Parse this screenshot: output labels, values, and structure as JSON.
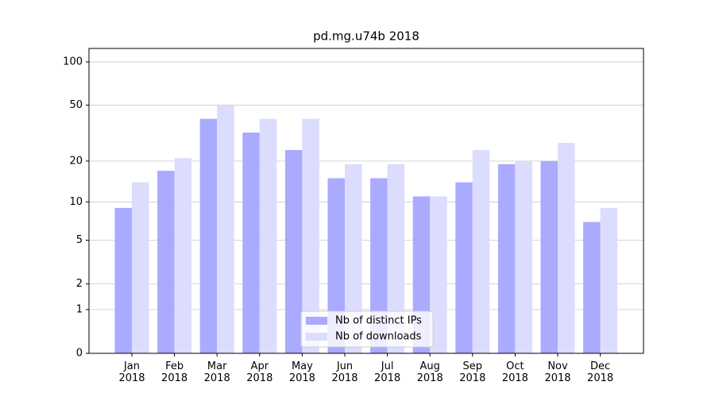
{
  "chart_data": {
    "type": "bar",
    "title": "pd.mg.u74b 2018",
    "scale": "log1p",
    "categories": [
      "Jan\n2018",
      "Feb\n2018",
      "Mar\n2018",
      "Apr\n2018",
      "May\n2018",
      "Jun\n2018",
      "Jul\n2018",
      "Aug\n2018",
      "Sep\n2018",
      "Oct\n2018",
      "Nov\n2018",
      "Dec\n2018"
    ],
    "series": [
      {
        "name": "Nb of distinct IPs",
        "color": "#aaaaff",
        "values": [
          9,
          17,
          40,
          32,
          24,
          15,
          15,
          11,
          14,
          19,
          20,
          7
        ]
      },
      {
        "name": "Nb of downloads",
        "color": "#dcdcff",
        "values": [
          14,
          21,
          50,
          40,
          40,
          19,
          19,
          11,
          24,
          20,
          27,
          9
        ]
      }
    ],
    "ylim": [
      0,
      124
    ],
    "yticks": [
      0,
      1,
      2,
      5,
      10,
      20,
      50,
      100
    ],
    "grid": true,
    "legend": "lower center"
  }
}
